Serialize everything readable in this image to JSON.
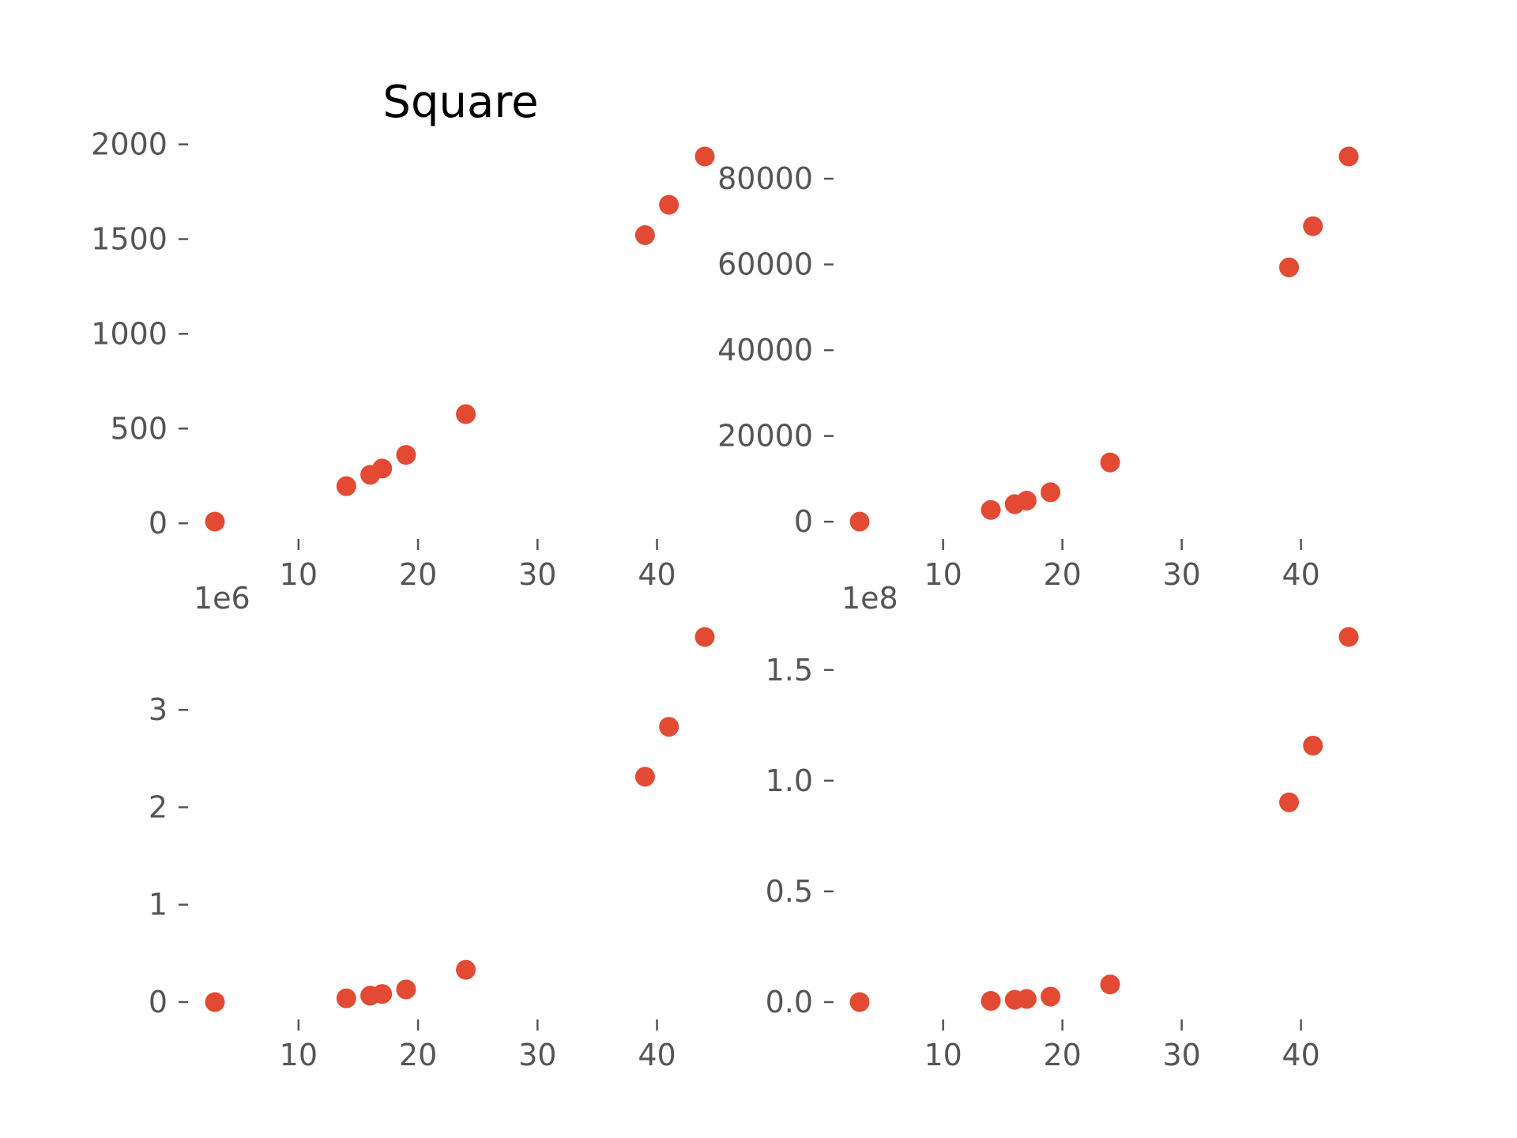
{
  "colors": {
    "marker": "#E24A33",
    "tick": "#555555",
    "background": "#ffffff"
  },
  "chart_data": [
    {
      "type": "scatter",
      "title": "Square",
      "x": [
        3,
        14,
        16,
        17,
        19,
        24,
        39,
        41,
        44
      ],
      "y": [
        9,
        196,
        256,
        289,
        361,
        576,
        1521,
        1681,
        1936
      ],
      "xticks": [
        10,
        20,
        30,
        40
      ],
      "xtick_labels": [
        "10",
        "20",
        "30",
        "40"
      ],
      "yticks": [
        0,
        500,
        1000,
        1500,
        2000
      ],
      "ytick_labels": [
        "0",
        "500",
        "1000",
        "1500",
        "2000"
      ],
      "offset_text": "",
      "grid": false,
      "xlim": [
        3,
        44
      ],
      "ylim": [
        9,
        1936
      ]
    },
    {
      "type": "scatter",
      "title": "",
      "x": [
        3,
        14,
        16,
        17,
        19,
        24,
        39,
        41,
        44
      ],
      "y": [
        27,
        2744,
        4096,
        4913,
        6859,
        13824,
        59319,
        68921,
        85184
      ],
      "xticks": [
        10,
        20,
        30,
        40
      ],
      "xtick_labels": [
        "10",
        "20",
        "30",
        "40"
      ],
      "yticks": [
        0,
        20000,
        40000,
        60000,
        80000
      ],
      "ytick_labels": [
        "0",
        "20000",
        "40000",
        "60000",
        "80000"
      ],
      "offset_text": "",
      "grid": false,
      "xlim": [
        3,
        44
      ],
      "ylim": [
        27,
        85184
      ]
    },
    {
      "type": "scatter",
      "title": "",
      "x": [
        3,
        14,
        16,
        17,
        19,
        24,
        39,
        41,
        44
      ],
      "y": [
        81,
        38416,
        65536,
        83521,
        130321,
        331776,
        2313441,
        2825761,
        3748096
      ],
      "xticks": [
        10,
        20,
        30,
        40
      ],
      "xtick_labels": [
        "10",
        "20",
        "30",
        "40"
      ],
      "yticks": [
        0,
        1000000,
        2000000,
        3000000
      ],
      "ytick_labels": [
        "0",
        "1",
        "2",
        "3"
      ],
      "offset_text": "1e6",
      "grid": false,
      "xlim": [
        3,
        44
      ],
      "ylim": [
        81,
        3748096
      ]
    },
    {
      "type": "scatter",
      "title": "",
      "x": [
        3,
        14,
        16,
        17,
        19,
        24,
        39,
        41,
        44
      ],
      "y": [
        243,
        537824,
        1048576,
        1419857,
        2476099,
        7962624,
        90224199,
        115856201,
        164916224
      ],
      "xticks": [
        10,
        20,
        30,
        40
      ],
      "xtick_labels": [
        "10",
        "20",
        "30",
        "40"
      ],
      "yticks": [
        0,
        50000000,
        100000000,
        150000000
      ],
      "ytick_labels": [
        "0.0",
        "0.5",
        "1.0",
        "1.5"
      ],
      "offset_text": "1e8",
      "grid": false,
      "xlim": [
        3,
        44
      ],
      "ylim": [
        243,
        164916224
      ]
    }
  ]
}
